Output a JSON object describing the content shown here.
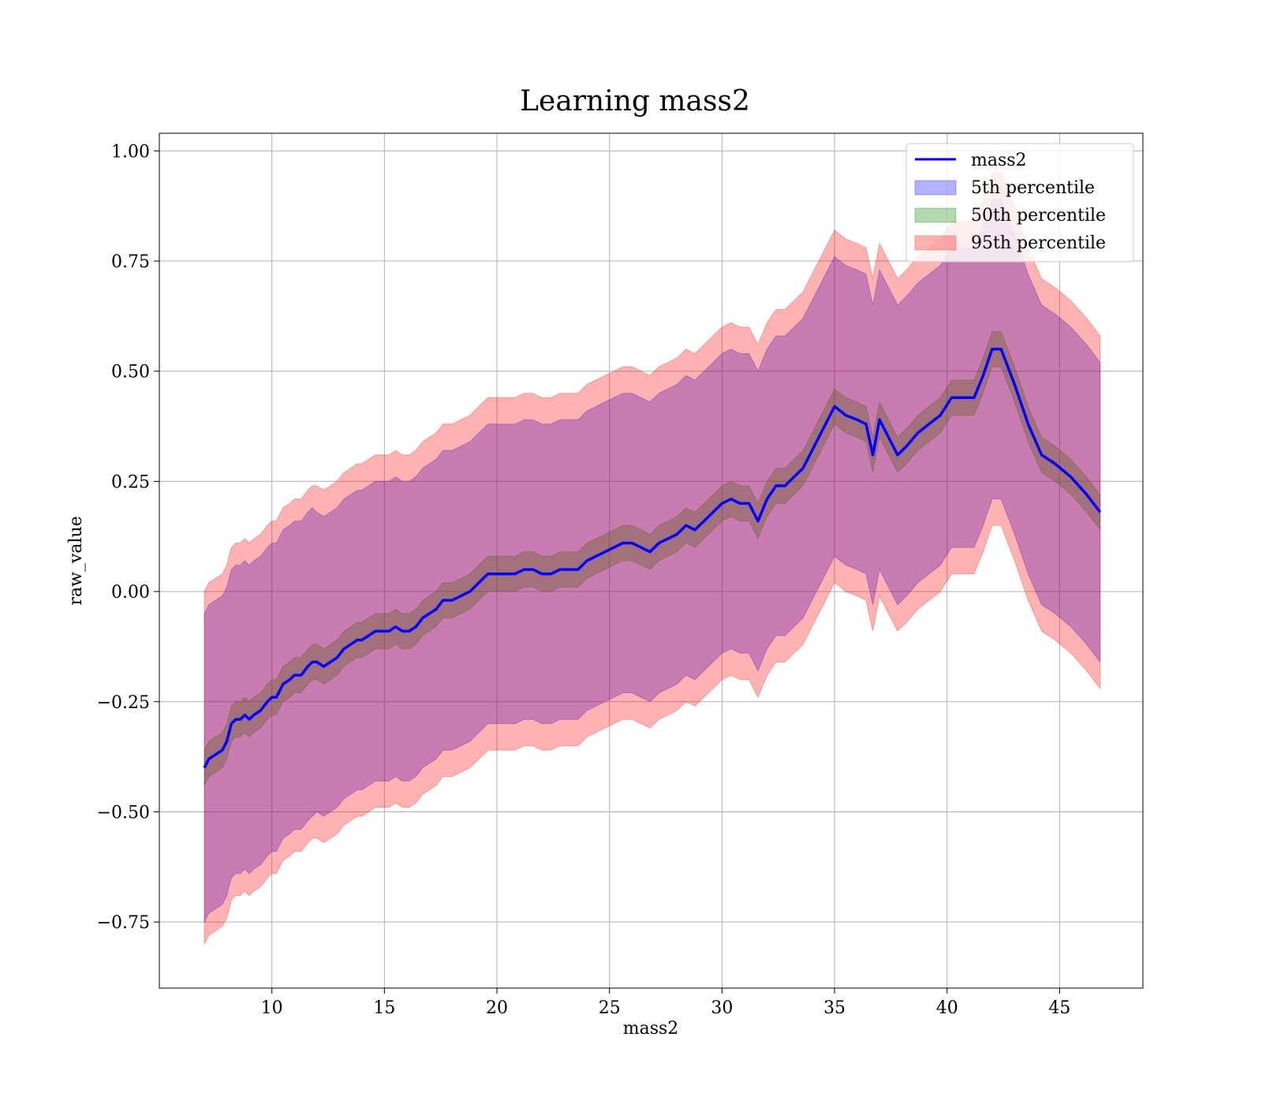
{
  "chart_data": {
    "type": "area",
    "title": "Learning mass2",
    "xlabel": "mass2",
    "ylabel": "raw_value",
    "xlim": [
      5.0,
      48.7
    ],
    "ylim": [
      -0.9,
      1.04
    ],
    "xticks": [
      10,
      15,
      20,
      25,
      30,
      35,
      40,
      45
    ],
    "xtick_labels": [
      "10",
      "15",
      "20",
      "25",
      "30",
      "35",
      "40",
      "45"
    ],
    "yticks": [
      -0.75,
      -0.5,
      -0.25,
      0.0,
      0.25,
      0.5,
      0.75,
      1.0
    ],
    "ytick_labels": [
      "−0.75",
      "−0.50",
      "−0.25",
      "0.00",
      "0.25",
      "0.50",
      "0.75",
      "1.00"
    ],
    "grid": true,
    "legend": {
      "placement": "top-right",
      "entries": [
        {
          "label": "mass2",
          "kind": "line",
          "color": "#0000ff"
        },
        {
          "label": "5th percentile",
          "kind": "patch",
          "color": "#0000ff"
        },
        {
          "label": "50th percentile",
          "kind": "patch",
          "color": "#008000"
        },
        {
          "label": "95th percentile",
          "kind": "patch",
          "color": "#ff0000"
        }
      ]
    },
    "x": [
      7.0,
      7.2,
      7.5,
      7.8,
      8.0,
      8.2,
      8.4,
      8.6,
      8.8,
      9.0,
      9.2,
      9.5,
      9.8,
      10.0,
      10.2,
      10.5,
      10.8,
      11.0,
      11.3,
      11.6,
      11.8,
      12.0,
      12.3,
      12.6,
      12.9,
      13.2,
      13.5,
      13.8,
      14.0,
      14.3,
      14.6,
      14.9,
      15.2,
      15.5,
      15.8,
      16.1,
      16.4,
      16.7,
      17.0,
      17.3,
      17.6,
      18.0,
      18.4,
      18.8,
      19.2,
      19.6,
      20.0,
      20.4,
      20.8,
      21.2,
      21.6,
      22.0,
      22.4,
      22.8,
      23.2,
      23.6,
      24.0,
      24.4,
      24.8,
      25.2,
      25.6,
      26.0,
      26.4,
      26.8,
      27.2,
      27.6,
      28.0,
      28.4,
      28.8,
      29.2,
      29.6,
      30.0,
      30.4,
      30.8,
      31.2,
      31.6,
      32.0,
      32.4,
      32.8,
      33.2,
      33.6,
      34.0,
      34.5,
      35.0,
      35.5,
      36.0,
      36.4,
      36.7,
      37.0,
      37.4,
      37.8,
      38.2,
      38.7,
      39.2,
      39.7,
      40.2,
      40.7,
      41.2,
      41.6,
      42.0,
      42.4,
      43.0,
      43.6,
      44.2,
      44.8,
      45.5,
      46.2,
      46.8
    ],
    "series": [
      {
        "name": "mass2",
        "color": "#0000ff",
        "values": [
          -0.4,
          -0.38,
          -0.37,
          -0.36,
          -0.34,
          -0.3,
          -0.29,
          -0.29,
          -0.28,
          -0.29,
          -0.28,
          -0.27,
          -0.25,
          -0.24,
          -0.24,
          -0.21,
          -0.2,
          -0.19,
          -0.19,
          -0.17,
          -0.16,
          -0.16,
          -0.17,
          -0.16,
          -0.15,
          -0.13,
          -0.12,
          -0.11,
          -0.11,
          -0.1,
          -0.09,
          -0.09,
          -0.09,
          -0.08,
          -0.09,
          -0.09,
          -0.08,
          -0.06,
          -0.05,
          -0.04,
          -0.02,
          -0.02,
          -0.01,
          0.0,
          0.02,
          0.04,
          0.04,
          0.04,
          0.04,
          0.05,
          0.05,
          0.04,
          0.04,
          0.05,
          0.05,
          0.05,
          0.07,
          0.08,
          0.09,
          0.1,
          0.11,
          0.11,
          0.1,
          0.09,
          0.11,
          0.12,
          0.13,
          0.15,
          0.14,
          0.16,
          0.18,
          0.2,
          0.21,
          0.2,
          0.2,
          0.16,
          0.21,
          0.24,
          0.24,
          0.26,
          0.28,
          0.32,
          0.37,
          0.42,
          0.4,
          0.39,
          0.38,
          0.31,
          0.39,
          0.35,
          0.31,
          0.33,
          0.36,
          0.38,
          0.4,
          0.44,
          0.44,
          0.44,
          0.49,
          0.55,
          0.55,
          0.47,
          0.38,
          0.31,
          0.29,
          0.26,
          0.22,
          0.18
        ]
      },
      {
        "name": "5th percentile",
        "color": "#0000ff",
        "half_width": [
          0.35,
          0.35,
          0.35,
          0.35,
          0.35,
          0.35,
          0.35,
          0.35,
          0.35,
          0.35,
          0.35,
          0.35,
          0.35,
          0.35,
          0.35,
          0.35,
          0.35,
          0.35,
          0.35,
          0.35,
          0.35,
          0.34,
          0.34,
          0.34,
          0.34,
          0.34,
          0.34,
          0.34,
          0.34,
          0.34,
          0.34,
          0.34,
          0.34,
          0.34,
          0.34,
          0.34,
          0.34,
          0.34,
          0.34,
          0.34,
          0.34,
          0.34,
          0.34,
          0.34,
          0.34,
          0.34,
          0.34,
          0.34,
          0.34,
          0.34,
          0.34,
          0.34,
          0.34,
          0.34,
          0.34,
          0.34,
          0.34,
          0.34,
          0.34,
          0.34,
          0.34,
          0.34,
          0.34,
          0.34,
          0.34,
          0.34,
          0.34,
          0.34,
          0.34,
          0.34,
          0.34,
          0.34,
          0.34,
          0.34,
          0.34,
          0.34,
          0.34,
          0.34,
          0.34,
          0.34,
          0.34,
          0.34,
          0.34,
          0.34,
          0.34,
          0.34,
          0.34,
          0.34,
          0.34,
          0.34,
          0.34,
          0.34,
          0.34,
          0.34,
          0.34,
          0.34,
          0.34,
          0.34,
          0.34,
          0.34,
          0.34,
          0.34,
          0.34,
          0.34,
          0.34,
          0.34,
          0.34,
          0.34
        ]
      },
      {
        "name": "50th percentile",
        "color": "#008000",
        "half_width": [
          0.04,
          0.04,
          0.04,
          0.04,
          0.04,
          0.04,
          0.04,
          0.04,
          0.04,
          0.04,
          0.04,
          0.04,
          0.04,
          0.04,
          0.04,
          0.04,
          0.04,
          0.04,
          0.04,
          0.04,
          0.04,
          0.04,
          0.04,
          0.04,
          0.04,
          0.04,
          0.04,
          0.04,
          0.04,
          0.04,
          0.04,
          0.04,
          0.04,
          0.04,
          0.04,
          0.04,
          0.04,
          0.04,
          0.04,
          0.04,
          0.04,
          0.04,
          0.04,
          0.04,
          0.04,
          0.04,
          0.04,
          0.04,
          0.04,
          0.04,
          0.04,
          0.04,
          0.04,
          0.04,
          0.04,
          0.04,
          0.04,
          0.04,
          0.04,
          0.04,
          0.04,
          0.04,
          0.04,
          0.04,
          0.04,
          0.04,
          0.04,
          0.04,
          0.04,
          0.04,
          0.04,
          0.04,
          0.04,
          0.04,
          0.04,
          0.04,
          0.04,
          0.04,
          0.04,
          0.04,
          0.04,
          0.04,
          0.04,
          0.04,
          0.04,
          0.04,
          0.04,
          0.04,
          0.04,
          0.04,
          0.04,
          0.04,
          0.04,
          0.04,
          0.04,
          0.04,
          0.04,
          0.04,
          0.04,
          0.04,
          0.04,
          0.04,
          0.04,
          0.04,
          0.04,
          0.04,
          0.04,
          0.04
        ]
      },
      {
        "name": "95th percentile",
        "color": "#ff0000",
        "half_width": [
          0.4,
          0.4,
          0.4,
          0.4,
          0.4,
          0.4,
          0.4,
          0.4,
          0.4,
          0.4,
          0.4,
          0.4,
          0.4,
          0.4,
          0.4,
          0.4,
          0.4,
          0.4,
          0.4,
          0.4,
          0.4,
          0.4,
          0.4,
          0.4,
          0.4,
          0.4,
          0.4,
          0.4,
          0.4,
          0.4,
          0.4,
          0.4,
          0.4,
          0.4,
          0.4,
          0.4,
          0.4,
          0.4,
          0.4,
          0.4,
          0.4,
          0.4,
          0.4,
          0.4,
          0.4,
          0.4,
          0.4,
          0.4,
          0.4,
          0.4,
          0.4,
          0.4,
          0.4,
          0.4,
          0.4,
          0.4,
          0.4,
          0.4,
          0.4,
          0.4,
          0.4,
          0.4,
          0.4,
          0.4,
          0.4,
          0.4,
          0.4,
          0.4,
          0.4,
          0.4,
          0.4,
          0.4,
          0.4,
          0.4,
          0.4,
          0.4,
          0.4,
          0.4,
          0.4,
          0.4,
          0.4,
          0.4,
          0.4,
          0.4,
          0.4,
          0.4,
          0.4,
          0.4,
          0.4,
          0.4,
          0.4,
          0.4,
          0.4,
          0.4,
          0.4,
          0.4,
          0.4,
          0.4,
          0.4,
          0.4,
          0.4,
          0.4,
          0.4,
          0.4,
          0.4,
          0.4,
          0.4,
          0.4
        ]
      }
    ]
  }
}
